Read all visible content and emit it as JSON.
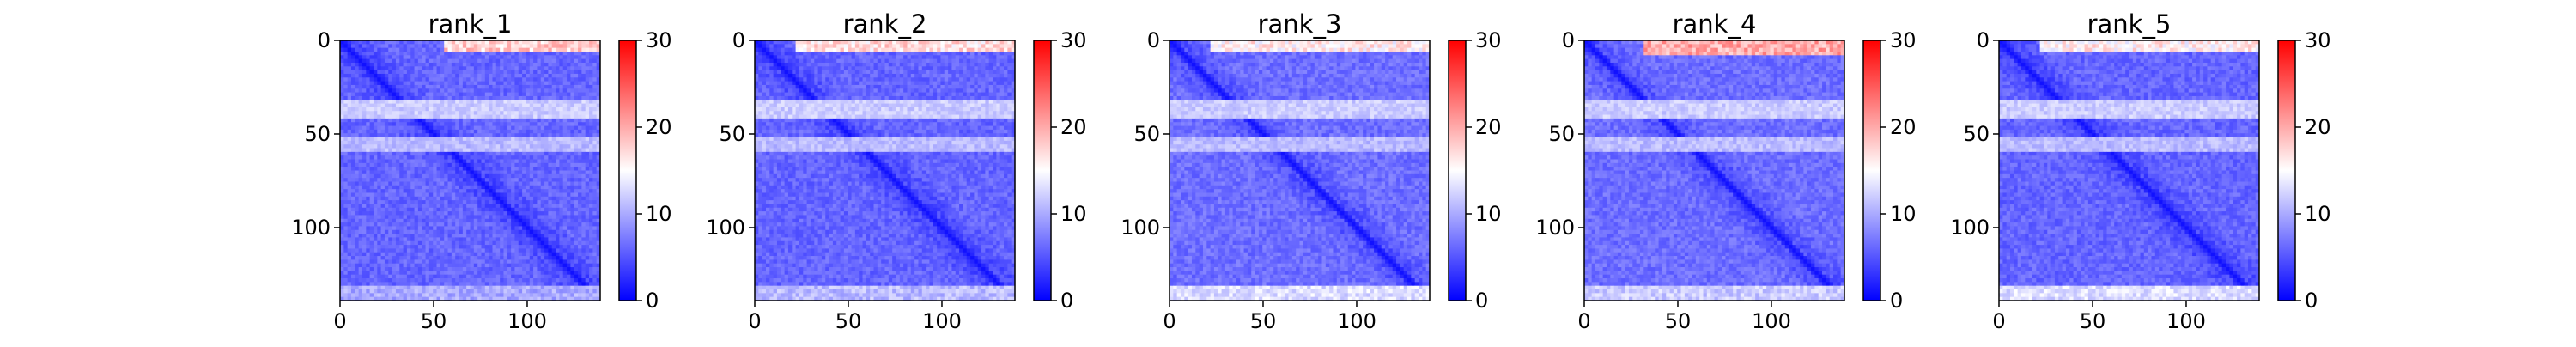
{
  "figure": {
    "panel_count": 5
  },
  "chart_data": [
    {
      "type": "heatmap",
      "title": "rank_1",
      "xlabel": "",
      "ylabel": "",
      "xlim": [
        0,
        139
      ],
      "ylim": [
        139,
        0
      ],
      "x_ticks": [
        "0",
        "50",
        "100"
      ],
      "y_ticks": [
        "0",
        "50",
        "100"
      ],
      "x_tick_values": [
        0,
        50,
        100
      ],
      "y_tick_values": [
        0,
        50,
        100
      ],
      "colorbar": {
        "min": 0,
        "max": 30,
        "ticks": [
          "0",
          "10",
          "20",
          "30"
        ],
        "tick_values": [
          0,
          10,
          20,
          30
        ],
        "colormap": [
          "#0000ff",
          "#ffffff",
          "#ff0000"
        ]
      },
      "matrix_size": 139,
      "base_error": 6,
      "hot_rows_top": {
        "rows": [
          0,
          3
        ],
        "cols": [
          55,
          139
        ],
        "value": 18
      },
      "bright_bands": [
        {
          "rows": [
            30,
            40
          ],
          "value": 12
        },
        {
          "rows": [
            50,
            58
          ],
          "value": 11
        }
      ],
      "bottom_rows_value": 10
    },
    {
      "type": "heatmap",
      "title": "rank_2",
      "xlabel": "",
      "ylabel": "",
      "xlim": [
        0,
        139
      ],
      "ylim": [
        139,
        0
      ],
      "x_ticks": [
        "0",
        "50",
        "100"
      ],
      "y_ticks": [
        "0",
        "50",
        "100"
      ],
      "x_tick_values": [
        0,
        50,
        100
      ],
      "y_tick_values": [
        0,
        50,
        100
      ],
      "colorbar": {
        "min": 0,
        "max": 30,
        "ticks": [
          "0",
          "10",
          "20",
          "30"
        ],
        "tick_values": [
          0,
          10,
          20,
          30
        ],
        "colormap": [
          "#0000ff",
          "#ffffff",
          "#ff0000"
        ]
      },
      "matrix_size": 139,
      "base_error": 6,
      "hot_rows_top": {
        "rows": [
          0,
          3
        ],
        "cols": [
          20,
          139
        ],
        "value": 17
      },
      "bright_bands": [
        {
          "rows": [
            30,
            40
          ],
          "value": 12
        },
        {
          "rows": [
            50,
            58
          ],
          "value": 11
        }
      ],
      "bottom_rows_value": 11
    },
    {
      "type": "heatmap",
      "title": "rank_3",
      "xlabel": "",
      "ylabel": "",
      "xlim": [
        0,
        139
      ],
      "ylim": [
        139,
        0
      ],
      "x_ticks": [
        "0",
        "50",
        "100"
      ],
      "y_ticks": [
        "0",
        "50",
        "100"
      ],
      "x_tick_values": [
        0,
        50,
        100
      ],
      "y_tick_values": [
        0,
        50,
        100
      ],
      "colorbar": {
        "min": 0,
        "max": 30,
        "ticks": [
          "0",
          "10",
          "20",
          "30"
        ],
        "tick_values": [
          0,
          10,
          20,
          30
        ],
        "colormap": [
          "#0000ff",
          "#ffffff",
          "#ff0000"
        ]
      },
      "matrix_size": 139,
      "base_error": 6.5,
      "hot_rows_top": {
        "rows": [
          0,
          3
        ],
        "cols": [
          20,
          139
        ],
        "value": 16
      },
      "bright_bands": [
        {
          "rows": [
            30,
            40
          ],
          "value": 12
        },
        {
          "rows": [
            50,
            58
          ],
          "value": 11
        }
      ],
      "bottom_rows_value": 13
    },
    {
      "type": "heatmap",
      "title": "rank_4",
      "xlabel": "",
      "ylabel": "",
      "xlim": [
        0,
        139
      ],
      "ylim": [
        139,
        0
      ],
      "x_ticks": [
        "0",
        "50",
        "100"
      ],
      "y_ticks": [
        "0",
        "50",
        "100"
      ],
      "x_tick_values": [
        0,
        50,
        100
      ],
      "y_tick_values": [
        0,
        50,
        100
      ],
      "colorbar": {
        "min": 0,
        "max": 30,
        "ticks": [
          "0",
          "10",
          "20",
          "30"
        ],
        "tick_values": [
          0,
          10,
          20,
          30
        ],
        "colormap": [
          "#0000ff",
          "#ffffff",
          "#ff0000"
        ]
      },
      "matrix_size": 139,
      "base_error": 6.5,
      "hot_rows_top": {
        "rows": [
          0,
          6
        ],
        "cols": [
          30,
          139
        ],
        "value": 20
      },
      "bright_bands": [
        {
          "rows": [
            30,
            40
          ],
          "value": 12
        },
        {
          "rows": [
            50,
            58
          ],
          "value": 11
        }
      ],
      "bottom_rows_value": 12
    },
    {
      "type": "heatmap",
      "title": "rank_5",
      "xlabel": "",
      "ylabel": "",
      "xlim": [
        0,
        139
      ],
      "ylim": [
        139,
        0
      ],
      "x_ticks": [
        "0",
        "50",
        "100"
      ],
      "y_ticks": [
        "0",
        "50",
        "100"
      ],
      "x_tick_values": [
        0,
        50,
        100
      ],
      "y_tick_values": [
        0,
        50,
        100
      ],
      "colorbar": {
        "min": 0,
        "max": 30,
        "ticks": [
          "0",
          "10",
          "20",
          "30"
        ],
        "tick_values": [
          0,
          10,
          20,
          30
        ],
        "colormap": [
          "#0000ff",
          "#ffffff",
          "#ff0000"
        ]
      },
      "matrix_size": 139,
      "base_error": 6,
      "hot_rows_top": {
        "rows": [
          0,
          3
        ],
        "cols": [
          20,
          139
        ],
        "value": 16
      },
      "bright_bands": [
        {
          "rows": [
            30,
            40
          ],
          "value": 12
        },
        {
          "rows": [
            50,
            58
          ],
          "value": 11
        }
      ],
      "bottom_rows_value": 13
    }
  ]
}
